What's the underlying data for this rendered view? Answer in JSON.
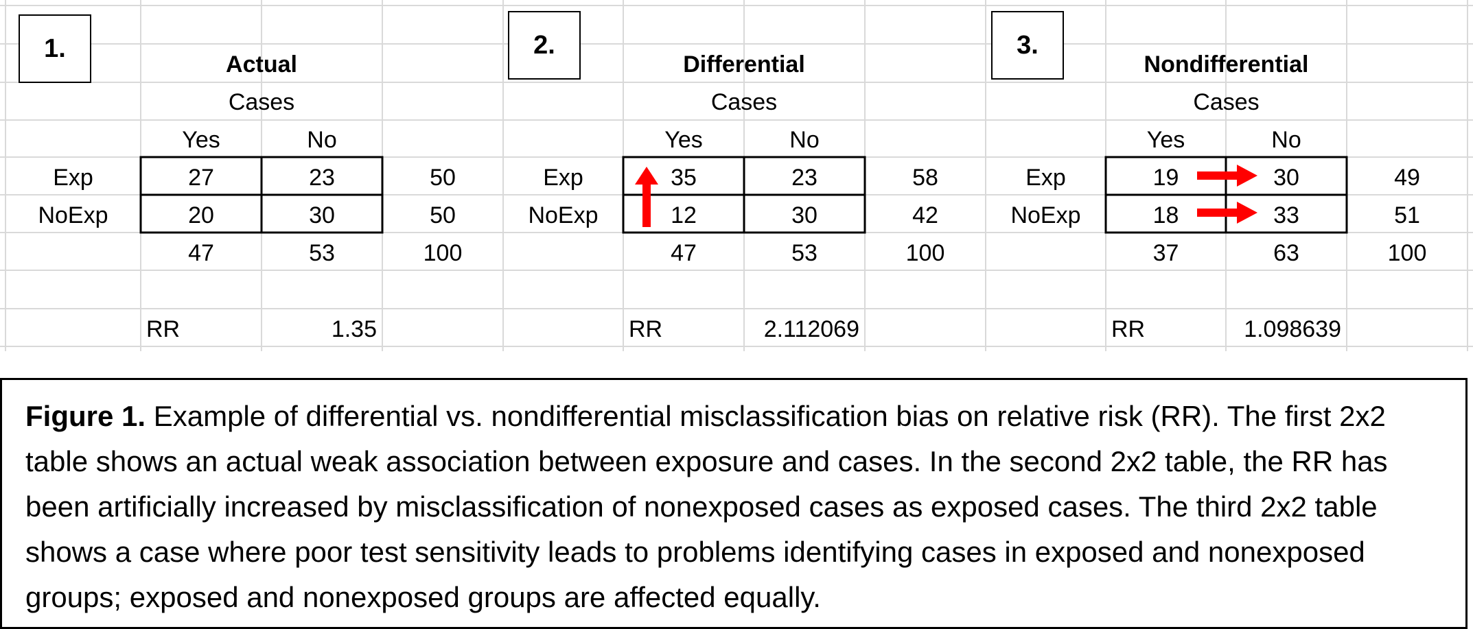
{
  "panels": [
    {
      "number": "1.",
      "title": "Actual",
      "cases_label": "Cases",
      "col_yes": "Yes",
      "col_no": "No",
      "row_exp": "Exp",
      "row_noexp": "NoExp",
      "exp_yes": "27",
      "exp_no": "23",
      "exp_total": "50",
      "noexp_yes": "20",
      "noexp_no": "30",
      "noexp_total": "50",
      "total_yes": "47",
      "total_no": "53",
      "grand_total": "100",
      "rr_label": "RR",
      "rr_value": "1.35"
    },
    {
      "number": "2.",
      "title": "Differential",
      "cases_label": "Cases",
      "col_yes": "Yes",
      "col_no": "No",
      "row_exp": "Exp",
      "row_noexp": "NoExp",
      "exp_yes": "35",
      "exp_no": "23",
      "exp_total": "58",
      "noexp_yes": "12",
      "noexp_no": "30",
      "noexp_total": "42",
      "total_yes": "47",
      "total_no": "53",
      "grand_total": "100",
      "rr_label": "RR",
      "rr_value": "2.112069"
    },
    {
      "number": "3.",
      "title": "Nondifferential",
      "cases_label": "Cases",
      "col_yes": "Yes",
      "col_no": "No",
      "row_exp": "Exp",
      "row_noexp": "NoExp",
      "exp_yes": "19",
      "exp_no": "30",
      "exp_total": "49",
      "noexp_yes": "18",
      "noexp_no": "33",
      "noexp_total": "51",
      "total_yes": "37",
      "total_no": "63",
      "grand_total": "100",
      "rr_label": "RR",
      "rr_value": "1.098639"
    }
  ],
  "caption": {
    "lead": "Figure 1.",
    "text": " Example of differential vs. nondifferential misclassification bias on relative risk (RR). The first 2x2 table shows an actual weak association between exposure and cases. In the second 2x2 table, the RR has been artificially increased by misclassification of nonexposed cases as exposed cases. The third 2x2 table shows a case where poor test sensitivity leads to problems identifying cases in exposed and nonexposed groups; exposed and nonexposed groups are affected equally."
  },
  "colors": {
    "arrow": "#ff0000",
    "gridline": "#d9d9d9"
  },
  "icons": {
    "panel2_arrow": "arrow-up-icon",
    "panel3_arrows": "arrow-right-icon"
  }
}
